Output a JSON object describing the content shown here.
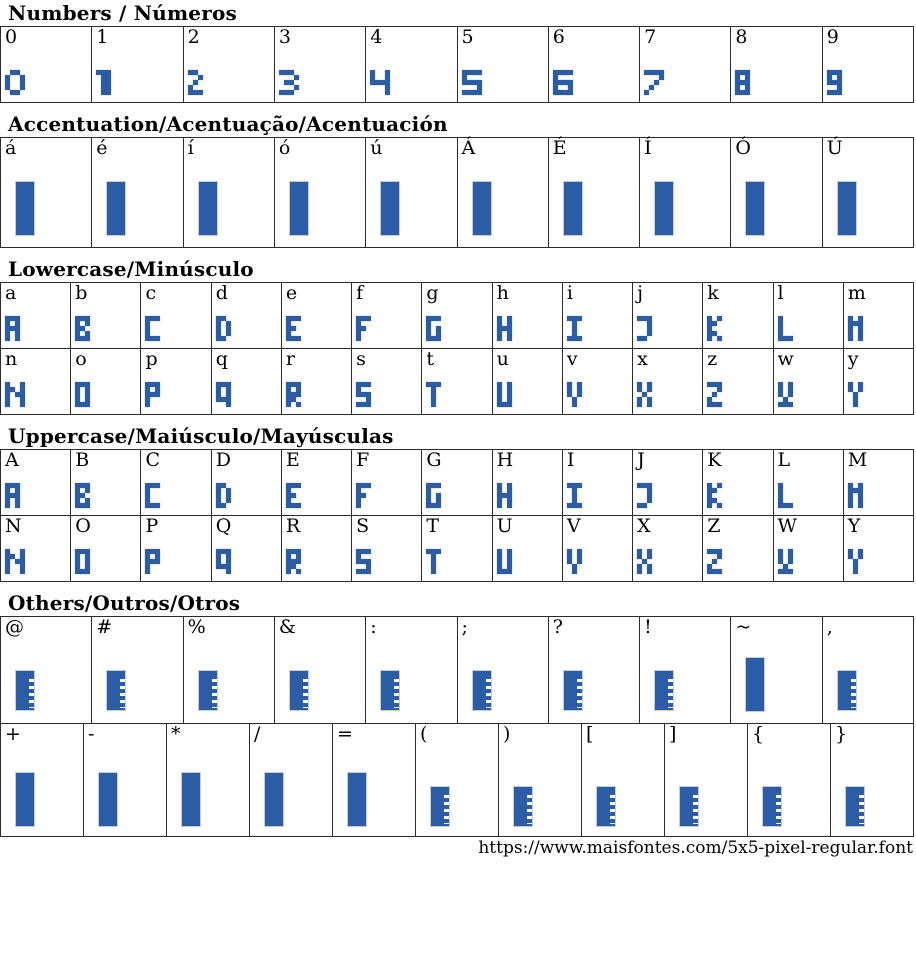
{
  "page": {
    "accent_color": "#2a5da6",
    "footer_url": "https://www.maisfontes.com/5x5-pixel-regular.font"
  },
  "sections": [
    {
      "title": "Numbers / Números",
      "rows": [
        [
          {
            "label": "0",
            "glyph": "0"
          },
          {
            "label": "1",
            "glyph": "1"
          },
          {
            "label": "2",
            "glyph": "2"
          },
          {
            "label": "3",
            "glyph": "3"
          },
          {
            "label": "4",
            "glyph": "4"
          },
          {
            "label": "5",
            "glyph": "5"
          },
          {
            "label": "6",
            "glyph": "6"
          },
          {
            "label": "7",
            "glyph": "7"
          },
          {
            "label": "8",
            "glyph": "8"
          },
          {
            "label": "9",
            "glyph": "9"
          }
        ]
      ]
    },
    {
      "title": "Accentuation/Acentuação/Acentuación",
      "rows": [
        [
          {
            "label": "á",
            "glyph": "BAR"
          },
          {
            "label": "é",
            "glyph": "BAR"
          },
          {
            "label": "í",
            "glyph": "BAR"
          },
          {
            "label": "ó",
            "glyph": "BAR"
          },
          {
            "label": "ú",
            "glyph": "BAR"
          },
          {
            "label": "Á",
            "glyph": "BAR"
          },
          {
            "label": "É",
            "glyph": "BAR"
          },
          {
            "label": "Í",
            "glyph": "BAR"
          },
          {
            "label": "Ó",
            "glyph": "BAR"
          },
          {
            "label": "Ú",
            "glyph": "BAR"
          }
        ]
      ]
    },
    {
      "title": "Lowercase/Minúsculo",
      "rows": [
        [
          {
            "label": "a",
            "glyph": "A"
          },
          {
            "label": "b",
            "glyph": "B"
          },
          {
            "label": "c",
            "glyph": "C"
          },
          {
            "label": "d",
            "glyph": "D"
          },
          {
            "label": "e",
            "glyph": "E"
          },
          {
            "label": "f",
            "glyph": "F"
          },
          {
            "label": "g",
            "glyph": "G"
          },
          {
            "label": "h",
            "glyph": "H"
          },
          {
            "label": "i",
            "glyph": "I"
          },
          {
            "label": "j",
            "glyph": "J"
          },
          {
            "label": "k",
            "glyph": "K"
          },
          {
            "label": "l",
            "glyph": "L"
          },
          {
            "label": "m",
            "glyph": "M"
          }
        ],
        [
          {
            "label": "n",
            "glyph": "N"
          },
          {
            "label": "o",
            "glyph": "O"
          },
          {
            "label": "p",
            "glyph": "P"
          },
          {
            "label": "q",
            "glyph": "Q"
          },
          {
            "label": "r",
            "glyph": "R"
          },
          {
            "label": "s",
            "glyph": "S"
          },
          {
            "label": "t",
            "glyph": "T"
          },
          {
            "label": "u",
            "glyph": "U"
          },
          {
            "label": "v",
            "glyph": "V"
          },
          {
            "label": "x",
            "glyph": "X"
          },
          {
            "label": "z",
            "glyph": "Z"
          },
          {
            "label": "w",
            "glyph": "W"
          },
          {
            "label": "y",
            "glyph": "Y"
          }
        ]
      ]
    },
    {
      "title": "Uppercase/Maiúsculo/Mayúsculas",
      "rows": [
        [
          {
            "label": "A",
            "glyph": "A"
          },
          {
            "label": "B",
            "glyph": "B"
          },
          {
            "label": "C",
            "glyph": "C"
          },
          {
            "label": "D",
            "glyph": "D"
          },
          {
            "label": "E",
            "glyph": "E"
          },
          {
            "label": "F",
            "glyph": "F"
          },
          {
            "label": "G",
            "glyph": "G"
          },
          {
            "label": "H",
            "glyph": "H"
          },
          {
            "label": "I",
            "glyph": "I"
          },
          {
            "label": "J",
            "glyph": "J"
          },
          {
            "label": "K",
            "glyph": "K"
          },
          {
            "label": "L",
            "glyph": "L"
          },
          {
            "label": "M",
            "glyph": "M"
          }
        ],
        [
          {
            "label": "N",
            "glyph": "N"
          },
          {
            "label": "O",
            "glyph": "O"
          },
          {
            "label": "P",
            "glyph": "P"
          },
          {
            "label": "Q",
            "glyph": "Q"
          },
          {
            "label": "R",
            "glyph": "R"
          },
          {
            "label": "S",
            "glyph": "S"
          },
          {
            "label": "T",
            "glyph": "T"
          },
          {
            "label": "U",
            "glyph": "U"
          },
          {
            "label": "V",
            "glyph": "V"
          },
          {
            "label": "X",
            "glyph": "X"
          },
          {
            "label": "Z",
            "glyph": "Z"
          },
          {
            "label": "W",
            "glyph": "W"
          },
          {
            "label": "Y",
            "glyph": "Y"
          }
        ]
      ]
    },
    {
      "title": "Others/Outros/Otros",
      "rows": [
        [
          {
            "label": "@",
            "glyph": "TOFU"
          },
          {
            "label": "#",
            "glyph": "TOFU"
          },
          {
            "label": "%",
            "glyph": "TOFU"
          },
          {
            "label": "&",
            "glyph": "TOFU"
          },
          {
            "label": ":",
            "glyph": "TOFU"
          },
          {
            "label": ";",
            "glyph": "TOFU"
          },
          {
            "label": "?",
            "glyph": "TOFU"
          },
          {
            "label": "!",
            "glyph": "TOFU"
          },
          {
            "label": "~",
            "glyph": "BAR"
          },
          {
            "label": ",",
            "glyph": "TOFU"
          }
        ],
        [
          {
            "label": "+",
            "glyph": "BAR"
          },
          {
            "label": "-",
            "glyph": "BAR"
          },
          {
            "label": "*",
            "glyph": "BAR"
          },
          {
            "label": "/",
            "glyph": "BAR"
          },
          {
            "label": "=",
            "glyph": "BAR"
          },
          {
            "label": "(",
            "glyph": "TOFU"
          },
          {
            "label": ")",
            "glyph": "TOFU"
          },
          {
            "label": "[",
            "glyph": "TOFU"
          },
          {
            "label": "]",
            "glyph": "TOFU"
          },
          {
            "label": "{",
            "glyph": "TOFU"
          },
          {
            "label": "}",
            "glyph": "TOFU"
          }
        ]
      ]
    }
  ],
  "glyphs": {
    "BAR": {
      "type": "bar"
    },
    "TOFU": {
      "type": "tofu"
    },
    "0": {
      "type": "bitmap",
      "rows": [
        ".##.",
        "#..#",
        "#..#",
        "#..#",
        ".##."
      ]
    },
    "1": {
      "type": "bitmap",
      "rows": [
        "###",
        ".##",
        ".##",
        ".##",
        ".##"
      ]
    },
    "2": {
      "type": "bitmap",
      "rows": [
        "##..",
        "..#.",
        ".#..",
        "#...",
        "###."
      ]
    },
    "3": {
      "type": "bitmap",
      "rows": [
        "###.",
        "...#",
        ".##.",
        "...#",
        "###."
      ]
    },
    "4": {
      "type": "bitmap",
      "rows": [
        "#..#",
        "#..#",
        "####",
        "...#",
        "...#"
      ]
    },
    "5": {
      "type": "bitmap",
      "rows": [
        "####",
        "#...",
        "####",
        "...#",
        "####"
      ]
    },
    "6": {
      "type": "bitmap",
      "rows": [
        "####",
        "#...",
        "####",
        "#..#",
        "####"
      ]
    },
    "7": {
      "type": "bitmap",
      "rows": [
        "####",
        "...#",
        "..#.",
        ".#..",
        "#..."
      ]
    },
    "8": {
      "type": "bitmap",
      "rows": [
        "###",
        "#.#",
        "###",
        "#.#",
        "###"
      ]
    },
    "9": {
      "type": "bitmap",
      "rows": [
        "###",
        "#.#",
        "###",
        "..#",
        "###"
      ]
    },
    "A": {
      "type": "bitmap",
      "rows": [
        "###",
        "#.#",
        "###",
        "#.#",
        "#.#"
      ]
    },
    "B": {
      "type": "bitmap",
      "rows": [
        "###",
        "#.#",
        "##.",
        "#.#",
        "###"
      ]
    },
    "C": {
      "type": "bitmap",
      "rows": [
        "###",
        "#..",
        "#..",
        "#..",
        "###"
      ]
    },
    "D": {
      "type": "bitmap",
      "rows": [
        "##.",
        "#.#",
        "#.#",
        "#.#",
        "##."
      ]
    },
    "E": {
      "type": "bitmap",
      "rows": [
        "###",
        "#..",
        "##.",
        "#..",
        "###"
      ]
    },
    "F": {
      "type": "bitmap",
      "rows": [
        "###",
        "#..",
        "##.",
        "#..",
        "#.."
      ]
    },
    "G": {
      "type": "bitmap",
      "rows": [
        "###",
        "#..",
        "#.#",
        "#.#",
        "###"
      ]
    },
    "H": {
      "type": "bitmap",
      "rows": [
        "#.#",
        "#.#",
        "###",
        "#.#",
        "#.#"
      ]
    },
    "I": {
      "type": "bitmap",
      "rows": [
        "###",
        ".#.",
        ".#.",
        ".#.",
        "###"
      ]
    },
    "J": {
      "type": "bitmap",
      "rows": [
        "###",
        "..#",
        "..#",
        "..#",
        "##."
      ]
    },
    "K": {
      "type": "bitmap",
      "rows": [
        "#.#",
        "##.",
        "#..",
        "##.",
        "#.#"
      ]
    },
    "L": {
      "type": "bitmap",
      "rows": [
        "#..",
        "#..",
        "#..",
        "#..",
        "###"
      ]
    },
    "M": {
      "type": "bitmap",
      "rows": [
        "#.#",
        "###",
        "#.#",
        "#.#",
        "#.#"
      ]
    },
    "N": {
      "type": "bitmap",
      "rows": [
        "#..#",
        "##.#",
        "#.##",
        "#..#",
        "#..#"
      ]
    },
    "O": {
      "type": "bitmap",
      "rows": [
        "###",
        "#.#",
        "#.#",
        "#.#",
        "###"
      ]
    },
    "P": {
      "type": "bitmap",
      "rows": [
        "###",
        "#.#",
        "###",
        "#..",
        "#.."
      ]
    },
    "Q": {
      "type": "bitmap",
      "rows": [
        "###",
        "#.#",
        "#.#",
        "###",
        "..#"
      ]
    },
    "R": {
      "type": "bitmap",
      "rows": [
        "###",
        "#.#",
        "###",
        "##.",
        "#.#"
      ]
    },
    "S": {
      "type": "bitmap",
      "rows": [
        "###",
        "#..",
        "###",
        "..#",
        "###"
      ]
    },
    "T": {
      "type": "bitmap",
      "rows": [
        "###",
        ".#.",
        ".#.",
        ".#.",
        ".#."
      ]
    },
    "U": {
      "type": "bitmap",
      "rows": [
        "#.#",
        "#.#",
        "#.#",
        "#.#",
        "###"
      ]
    },
    "V": {
      "type": "bitmap",
      "rows": [
        "#.#",
        "#.#",
        "#.#",
        ".#.",
        ".#."
      ]
    },
    "W": {
      "type": "bitmap",
      "rows": [
        "#.#",
        "#.#",
        "#.#",
        ".#.",
        "###"
      ]
    },
    "X": {
      "type": "bitmap",
      "rows": [
        "#.#",
        "#.#",
        ".#.",
        "#.#",
        "#.#"
      ]
    },
    "Y": {
      "type": "bitmap",
      "rows": [
        "#.#",
        "#.#",
        ".#.",
        ".#.",
        ".#."
      ]
    },
    "Z": {
      "type": "bitmap",
      "rows": [
        "###",
        "..#",
        ".#.",
        "#..",
        "###"
      ]
    }
  }
}
